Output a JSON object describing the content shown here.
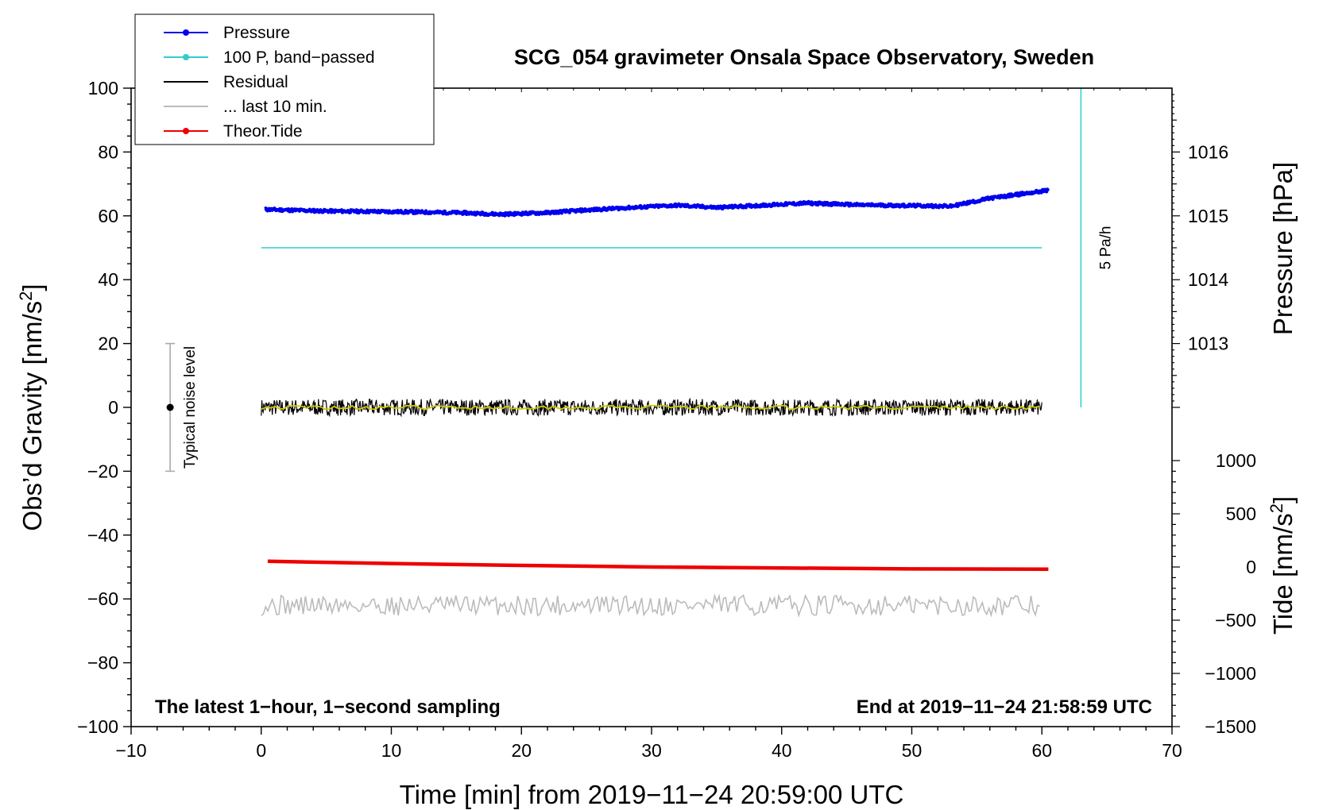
{
  "chart_data": {
    "type": "line",
    "title": "SCG_054 gravimeter Onsala Space Observatory, Sweden",
    "xlabel": "Time [min] from 2019−11−24 20:59:00 UTC",
    "ylabel": "Obs’d Gravity [nm/s",
    "ylabel_sup": "2",
    "ylabel_end": "]",
    "y2label_pressure": "Pressure [hPa]",
    "y2label_tide": "Tide [nm/s",
    "y2label_tide_sup": "2",
    "y2label_tide_end": "]",
    "xlim": [
      -10,
      70
    ],
    "ylim": [
      -100,
      100
    ],
    "x_ticks": [
      -10,
      0,
      10,
      20,
      30,
      40,
      50,
      60,
      70
    ],
    "y_ticks": [
      -100,
      -80,
      -60,
      -40,
      -20,
      0,
      20,
      40,
      60,
      80,
      100
    ],
    "pressure_ticks": [
      1013,
      1014,
      1015,
      1016
    ],
    "pressure_axis": {
      "value_at_0": 1012,
      "hpa_per_20": 1
    },
    "tide_ticks": [
      -1500,
      -1000,
      -500,
      0,
      500,
      1000
    ],
    "tide_axis": {
      "value_at_minus100": -1500,
      "value_at_minus50": 0
    },
    "minus_sign": "−",
    "legend": [
      {
        "label": "Pressure",
        "color": "#0000ee",
        "marker": true
      },
      {
        "label": "100 P, band−passed",
        "color": "#33cccc",
        "marker": true
      },
      {
        "label": "Residual",
        "color": "#000000",
        "marker": false
      },
      {
        "label": "... last 10 min.",
        "color": "#bbbbbb",
        "marker": false
      },
      {
        "label": "Theor.Tide",
        "color": "#ee0000",
        "marker": true
      }
    ],
    "series": [
      {
        "name": "Pressure",
        "color": "#0000ee",
        "x": [
          0.3,
          5,
          10,
          15,
          18.5,
          22,
          25,
          28,
          32,
          35,
          38,
          42,
          46,
          50,
          53,
          56,
          60.5
        ],
        "y": [
          62.0,
          61.5,
          61.3,
          61.0,
          60.5,
          61.0,
          61.8,
          62.5,
          63.3,
          62.6,
          63.2,
          64.0,
          63.4,
          63.2,
          63.0,
          65.5,
          68.0
        ]
      },
      {
        "name": "100 P, band-passed",
        "color": "#33cccc",
        "x": [
          0,
          60
        ],
        "y": [
          50,
          50
        ]
      },
      {
        "name": "Residual",
        "color": "#000000",
        "x_range": [
          0,
          60
        ],
        "center": 0,
        "spread": 2.6
      },
      {
        "name": "Residual smoothed",
        "color": "#cccc00",
        "x_range": [
          0,
          60
        ],
        "center": 0,
        "spread": 0.6
      },
      {
        "name": "... last 10 min.",
        "color": "#bbbbbb",
        "x_range": [
          0,
          60
        ],
        "center": -62,
        "spread": 3.2
      },
      {
        "name": "Theor.Tide",
        "color": "#ee0000",
        "x": [
          0.5,
          10,
          20,
          30,
          40,
          50,
          60.5
        ],
        "y": [
          -48.2,
          -48.9,
          -49.5,
          -50.0,
          -50.3,
          -50.6,
          -50.7
        ]
      }
    ],
    "five_pa_h": {
      "label": "5 Pa/h",
      "x": 63,
      "y_from": 0,
      "y_to": 100
    },
    "noise_bar": {
      "label": "Typical noise level",
      "x": -7,
      "y": 0,
      "low": -20,
      "high": 20
    },
    "note_left": "The latest 1−hour, 1−second sampling",
    "note_right": "End at 2019−11−24 21:58:59 UTC"
  }
}
